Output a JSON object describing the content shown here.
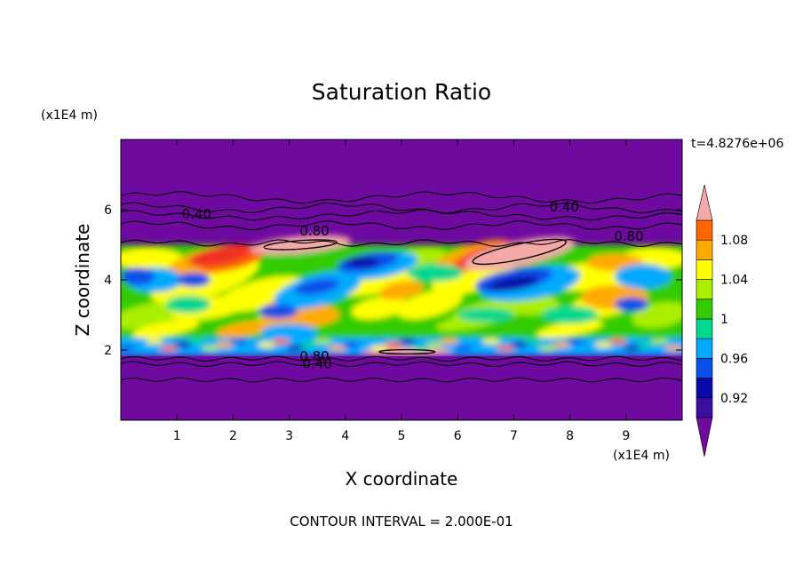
{
  "chart_data": {
    "type": "heatmap",
    "title": "Saturation Ratio",
    "xlabel": "X coordinate",
    "ylabel": "Z coordinate",
    "x_unit": "(x1E4 m)",
    "y_unit": "(x1E4 m)",
    "time_label": "t=4.8276e+06",
    "footer": "CONTOUR INTERVAL = 2.000E-01",
    "xlim": [
      0,
      10
    ],
    "ylim": [
      0,
      8
    ],
    "x_ticks": [
      1,
      2,
      3,
      4,
      5,
      6,
      7,
      8,
      9
    ],
    "y_ticks": [
      2,
      4,
      6
    ],
    "x_tick_labels": [
      "1",
      "2",
      "3",
      "4",
      "5",
      "6",
      "7",
      "8",
      "9"
    ],
    "y_tick_labels": [
      "2",
      "4",
      "6"
    ],
    "background_color": "#6f0aa0",
    "colorbar": {
      "levels": [
        0.9,
        0.92,
        0.94,
        0.96,
        0.98,
        1.0,
        1.02,
        1.04,
        1.06,
        1.08,
        1.1
      ],
      "labels": [
        "0.92",
        "0.96",
        "1",
        "1.04",
        "1.08"
      ],
      "label_values": [
        0.92,
        0.96,
        1.0,
        1.04,
        1.08
      ],
      "colors": [
        "#3a0ea0",
        "#0a0aa8",
        "#0a50e8",
        "#00aaff",
        "#00d890",
        "#33cc00",
        "#aaee00",
        "#ffff00",
        "#ffaa00",
        "#ff6600",
        "#f03020"
      ],
      "under_color": "#6f0aa0",
      "over_color": "#f4a8a8"
    },
    "contour_labels": [
      {
        "text": "0.40",
        "x": 1.35,
        "z": 5.75
      },
      {
        "text": "0.80",
        "x": 3.45,
        "z": 5.27
      },
      {
        "text": "0.40",
        "x": 7.9,
        "z": 5.95
      },
      {
        "text": "0.80",
        "x": 9.05,
        "z": 5.12
      },
      {
        "text": "0.80",
        "x": 3.45,
        "z": 1.7
      },
      {
        "text": "0.40",
        "x": 3.5,
        "z": 1.48
      }
    ]
  }
}
